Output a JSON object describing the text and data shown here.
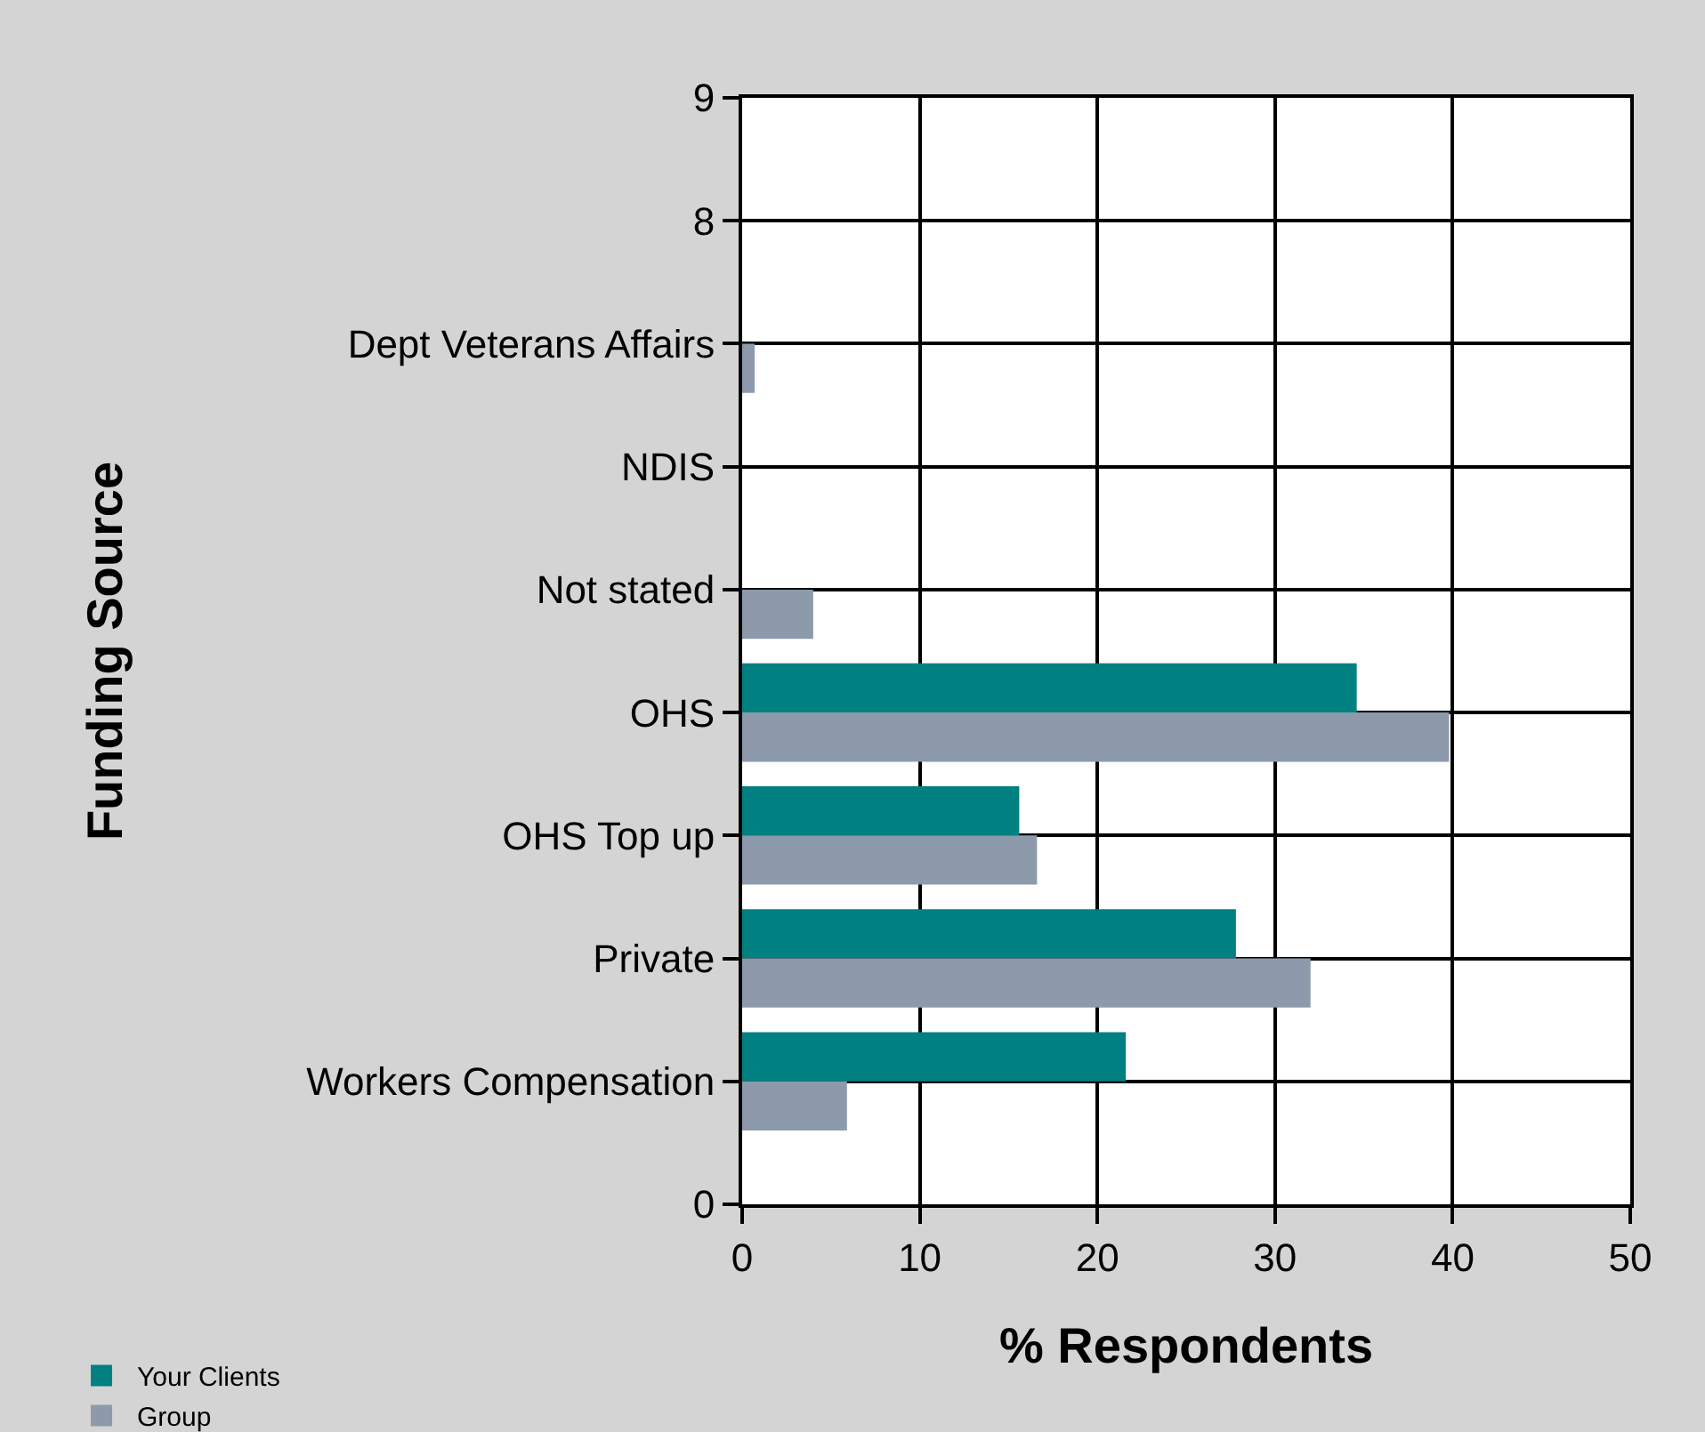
{
  "chart_data": {
    "type": "bar",
    "orientation": "horizontal",
    "categories": [
      "9",
      "8",
      "Dept Veterans Affairs",
      "NDIS",
      "Not stated",
      "OHS",
      "OHS Top up",
      "Private",
      "Workers Compensation",
      "0"
    ],
    "series": [
      {
        "name": "Your Clients",
        "color": "#008080",
        "values": [
          null,
          null,
          null,
          null,
          null,
          34.6,
          15.6,
          27.8,
          21.6,
          null
        ]
      },
      {
        "name": "Group",
        "color": "#8c9aab",
        "values": [
          null,
          null,
          0.7,
          null,
          4.0,
          39.8,
          16.6,
          32.0,
          5.9,
          null
        ]
      }
    ],
    "xlabel": "% Respondents",
    "ylabel": "Funding Source",
    "xlim": [
      0,
      50
    ],
    "xticks": [
      0,
      10,
      20,
      30,
      40,
      50
    ],
    "grid": true,
    "legend": "bottom left"
  }
}
